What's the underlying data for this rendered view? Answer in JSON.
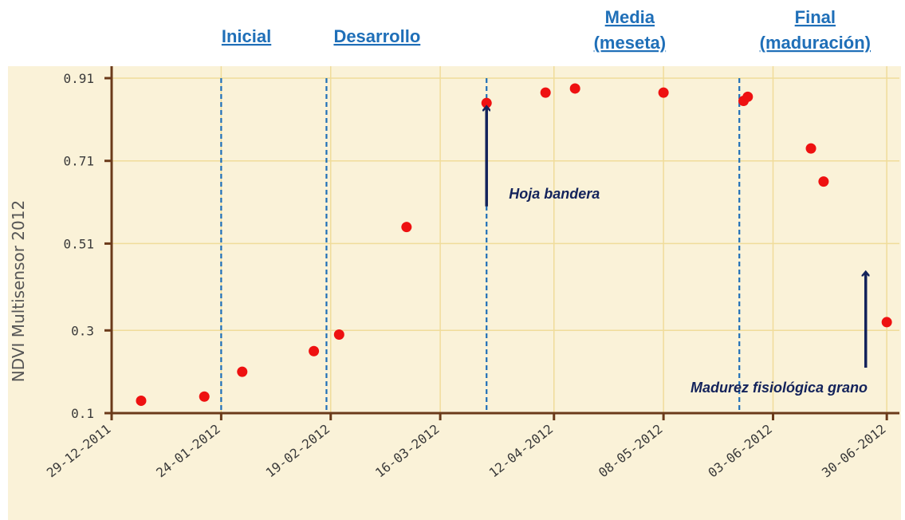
{
  "chart_data": {
    "type": "scatter",
    "ylabel": "NDVI Multisensor 2012",
    "xlabel": "",
    "ylim": [
      0.1,
      0.91
    ],
    "y_ticks": [
      0.1,
      0.3,
      0.51,
      0.71,
      0.91
    ],
    "y_tick_labels": [
      "0.1",
      "0.3",
      "0.51",
      "0.71",
      "0.91"
    ],
    "xlim": [
      "2011-12-29",
      "2012-07-03"
    ],
    "x_ticks": [
      "2011-12-29",
      "2012-01-24",
      "2012-02-19",
      "2012-03-16",
      "2012-04-12",
      "2012-05-08",
      "2012-06-03",
      "2012-06-30"
    ],
    "x_tick_labels": [
      "29-12-2011",
      "24-01-2012",
      "19-02-2012",
      "16-03-2012",
      "12-04-2012",
      "08-05-2012",
      "03-06-2012",
      "30-06-2012"
    ],
    "grid": true,
    "colors": {
      "background": "#faf2d8",
      "grid": "#f0dc9a",
      "axis": "#6b3a1a",
      "point": "#ee1111",
      "stage_line": "#1f6fb8",
      "stage_label": "#1f6fb8",
      "arrow": "#13235b"
    },
    "series": [
      {
        "points": [
          {
            "x": "2012-01-05",
            "y": 0.13
          },
          {
            "x": "2012-01-20",
            "y": 0.14
          },
          {
            "x": "2012-01-29",
            "y": 0.2
          },
          {
            "x": "2012-02-15",
            "y": 0.25
          },
          {
            "x": "2012-02-21",
            "y": 0.29
          },
          {
            "x": "2012-03-08",
            "y": 0.55
          },
          {
            "x": "2012-03-27",
            "y": 0.85
          },
          {
            "x": "2012-04-10",
            "y": 0.875
          },
          {
            "x": "2012-04-17",
            "y": 0.885
          },
          {
            "x": "2012-05-08",
            "y": 0.875
          },
          {
            "x": "2012-05-27",
            "y": 0.855
          },
          {
            "x": "2012-05-28",
            "y": 0.865
          },
          {
            "x": "2012-06-12",
            "y": 0.74
          },
          {
            "x": "2012-06-15",
            "y": 0.66
          },
          {
            "x": "2012-06-30",
            "y": 0.32
          }
        ]
      }
    ],
    "stage_lines": [
      "2012-01-24",
      "2012-02-18",
      "2012-03-27",
      "2012-05-26"
    ],
    "stages": [
      {
        "lines": [
          "Inicial"
        ],
        "x": "2012-01-30"
      },
      {
        "lines": [
          "Desarrollo"
        ],
        "x": "2012-03-01"
      },
      {
        "lines": [
          "Media",
          "(meseta)"
        ],
        "x": "2012-04-30"
      },
      {
        "lines": [
          "Final",
          "(maduración)"
        ],
        "x": "2012-06-13"
      }
    ],
    "annotations": [
      {
        "label": "Hoja bandera",
        "x": "2012-03-27",
        "y_from": 0.6,
        "y_to": 0.84
      },
      {
        "label": "Madurez fisiológica grano",
        "x": "2012-06-25",
        "y_from": 0.21,
        "y_to": 0.44
      }
    ]
  }
}
